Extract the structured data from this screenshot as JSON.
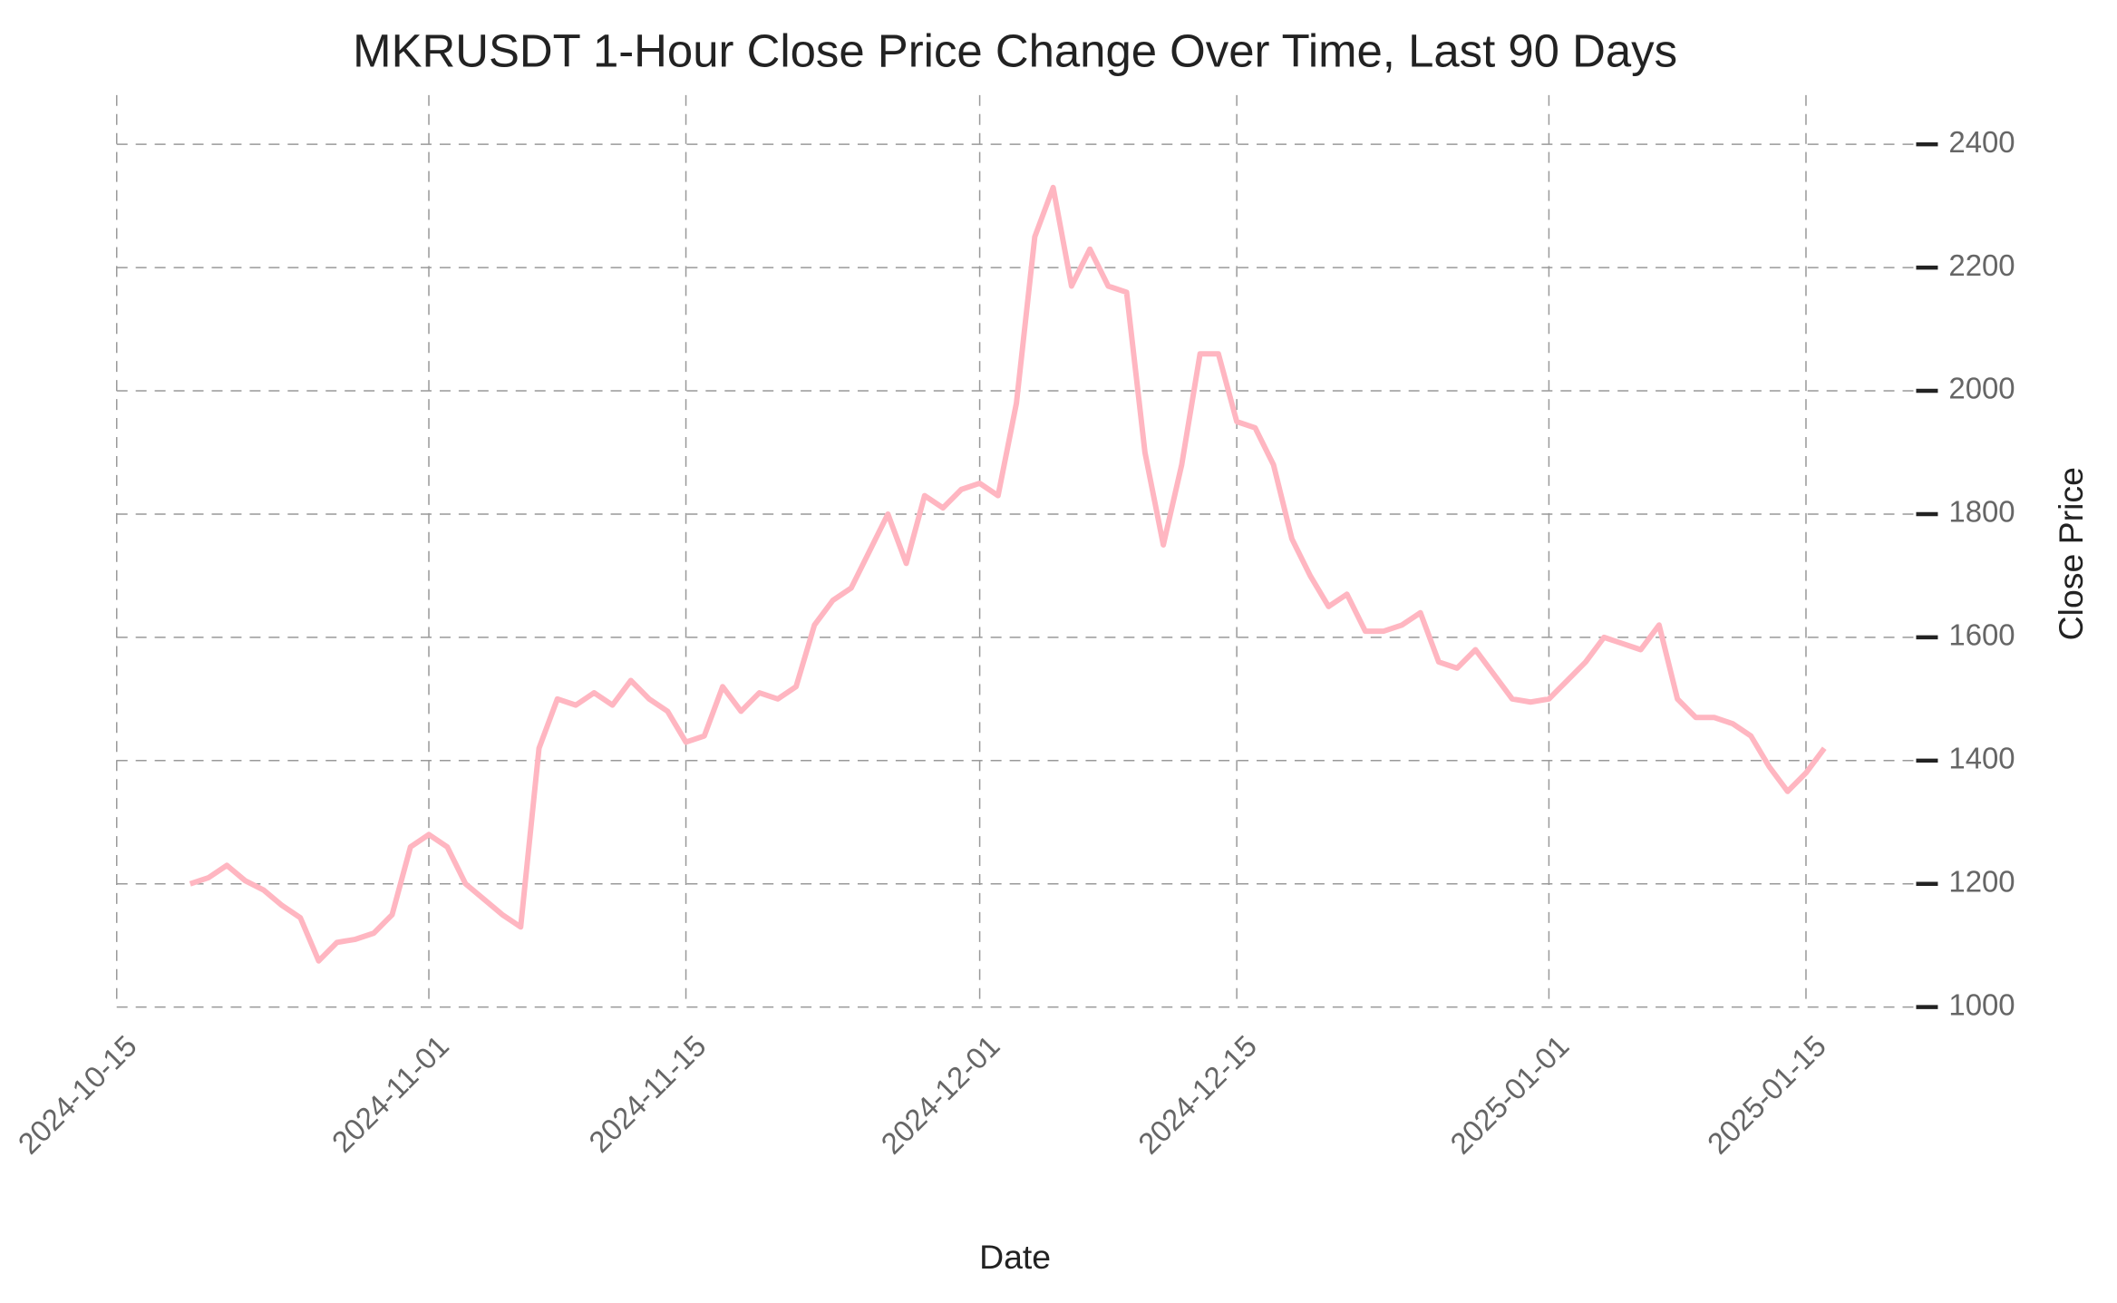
{
  "chart_data": {
    "type": "line",
    "title": "MKRUSDT 1-Hour Close Price Change Over Time, Last 90 Days",
    "x_label": "Date",
    "y_label": "Close Price",
    "x": [
      "2024-10-19",
      "2024-10-20",
      "2024-10-21",
      "2024-10-22",
      "2024-10-23",
      "2024-10-24",
      "2024-10-25",
      "2024-10-26",
      "2024-10-27",
      "2024-10-28",
      "2024-10-29",
      "2024-10-30",
      "2024-10-31",
      "2024-11-01",
      "2024-11-02",
      "2024-11-03",
      "2024-11-04",
      "2024-11-05",
      "2024-11-06",
      "2024-11-07",
      "2024-11-08",
      "2024-11-09",
      "2024-11-10",
      "2024-11-11",
      "2024-11-12",
      "2024-11-13",
      "2024-11-14",
      "2024-11-15",
      "2024-11-16",
      "2024-11-17",
      "2024-11-18",
      "2024-11-19",
      "2024-11-20",
      "2024-11-21",
      "2024-11-22",
      "2024-11-23",
      "2024-11-24",
      "2024-11-25",
      "2024-11-26",
      "2024-11-27",
      "2024-11-28",
      "2024-11-29",
      "2024-11-30",
      "2024-12-01",
      "2024-12-02",
      "2024-12-03",
      "2024-12-04",
      "2024-12-05",
      "2024-12-06",
      "2024-12-07",
      "2024-12-08",
      "2024-12-09",
      "2024-12-10",
      "2024-12-11",
      "2024-12-12",
      "2024-12-13",
      "2024-12-14",
      "2024-12-15",
      "2024-12-16",
      "2024-12-17",
      "2024-12-18",
      "2024-12-19",
      "2024-12-20",
      "2024-12-21",
      "2024-12-22",
      "2024-12-23",
      "2024-12-24",
      "2024-12-25",
      "2024-12-26",
      "2024-12-27",
      "2024-12-28",
      "2024-12-29",
      "2024-12-30",
      "2024-12-31",
      "2025-01-01",
      "2025-01-02",
      "2025-01-03",
      "2025-01-04",
      "2025-01-05",
      "2025-01-06",
      "2025-01-07",
      "2025-01-08",
      "2025-01-09",
      "2025-01-10",
      "2025-01-11",
      "2025-01-12",
      "2025-01-13",
      "2025-01-14",
      "2025-01-15",
      "2025-01-16"
    ],
    "values": [
      1200,
      1210,
      1230,
      1205,
      1190,
      1165,
      1145,
      1075,
      1105,
      1110,
      1120,
      1150,
      1260,
      1280,
      1260,
      1200,
      1175,
      1150,
      1130,
      1420,
      1500,
      1490,
      1510,
      1490,
      1530,
      1500,
      1480,
      1430,
      1440,
      1520,
      1480,
      1510,
      1500,
      1520,
      1620,
      1660,
      1680,
      1740,
      1800,
      1720,
      1830,
      1810,
      1840,
      1850,
      1830,
      1980,
      2250,
      2330,
      2170,
      2230,
      2170,
      2160,
      1900,
      1750,
      1880,
      2060,
      2060,
      1950,
      1940,
      1880,
      1760,
      1700,
      1650,
      1670,
      1610,
      1610,
      1620,
      1640,
      1560,
      1550,
      1580,
      1540,
      1500,
      1495,
      1500,
      1530,
      1560,
      1600,
      1590,
      1580,
      1620,
      1500,
      1470,
      1470,
      1460,
      1440,
      1390,
      1350,
      1380,
      1420
    ],
    "color": "#ffb6c1",
    "xlim": [
      "2024-10-15",
      "2025-01-21"
    ],
    "xticks": [
      "2024-10-15",
      "2024-11-01",
      "2024-11-15",
      "2024-12-01",
      "2024-12-15",
      "2025-01-01",
      "2025-01-15"
    ],
    "ylim": [
      1000,
      2480
    ],
    "yticks": [
      1000,
      1200,
      1400,
      1600,
      1800,
      2000,
      2200,
      2400
    ],
    "grid": true
  }
}
